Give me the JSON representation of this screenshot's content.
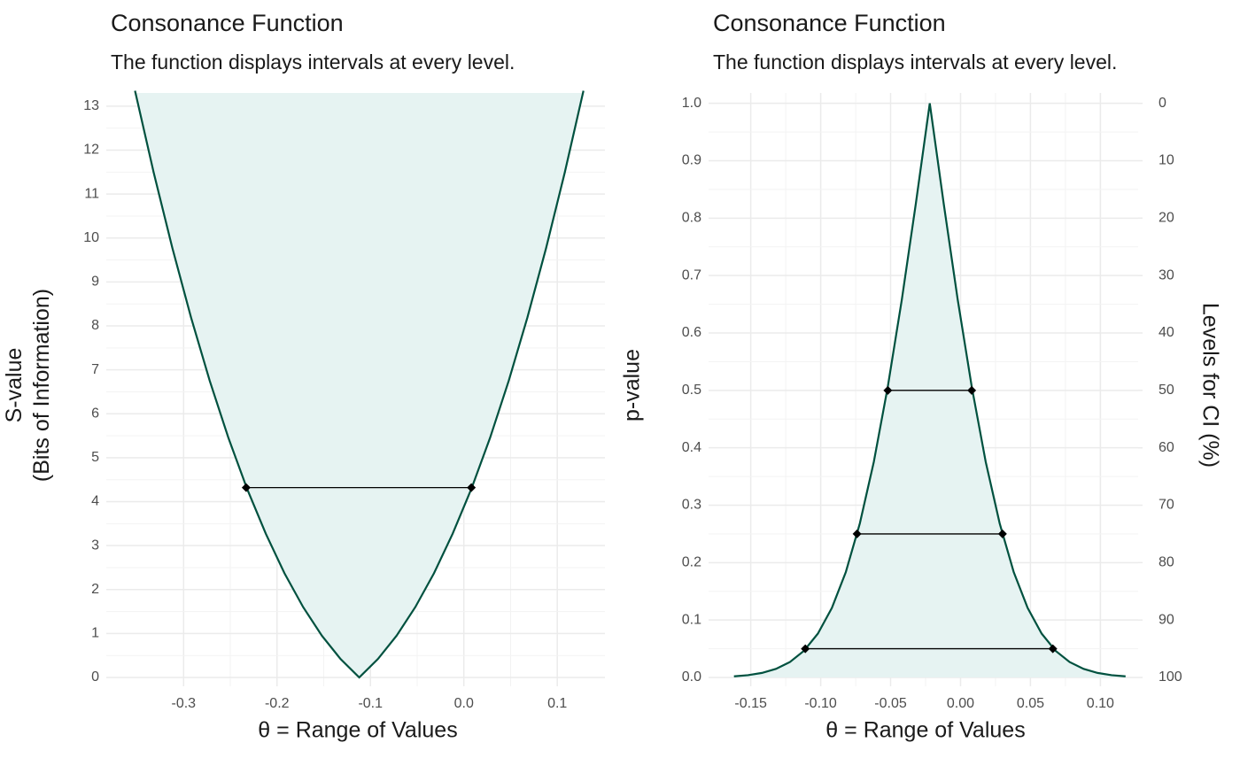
{
  "chart_data": [
    {
      "type": "line",
      "fill": "above",
      "color": "#00513f",
      "fill_color": "#e6f3f2",
      "title": "Consonance Function",
      "subtitle": "The function displays intervals at every level.",
      "x_label": "θ =  Range of Values",
      "y_label": [
        "S-value",
        "(Bits of Information)"
      ],
      "x": [
        -0.352,
        -0.332,
        -0.312,
        -0.292,
        -0.272,
        -0.252,
        -0.232,
        -0.212,
        -0.192,
        -0.172,
        -0.152,
        -0.132,
        -0.112,
        -0.092,
        -0.072,
        -0.052,
        -0.032,
        -0.012,
        0.008,
        0.028,
        0.048,
        0.068,
        0.088,
        0.108,
        0.128
      ],
      "values": [
        13.35,
        11.49,
        9.77,
        8.19,
        6.75,
        5.45,
        4.29,
        3.27,
        2.37,
        1.6,
        0.95,
        0.42,
        0,
        0.42,
        0.95,
        1.6,
        2.37,
        3.27,
        4.29,
        5.45,
        6.75,
        8.19,
        9.77,
        11.49,
        13.35
      ],
      "intervals": [
        {
          "lower": -0.233,
          "upper": 0.008,
          "level": 4.32
        }
      ],
      "xlim": [
        -0.378,
        0.151
      ],
      "ylim": [
        0,
        13.3
      ],
      "xticks": [
        -0.3,
        -0.2,
        -0.1,
        {
          "value": 0,
          "label": "0.0"
        },
        0.1
      ],
      "yticks": [
        0,
        1,
        2,
        3,
        4,
        5,
        6,
        7,
        8,
        9,
        10,
        11,
        12,
        13
      ],
      "grid": true
    },
    {
      "type": "line",
      "fill": "below",
      "color": "#00513f",
      "fill_color": "#e6f3f2",
      "title": "Consonance Function",
      "subtitle": "The function displays intervals at every level.",
      "x_label": "θ =  Range of Values",
      "y_label": [
        "p-value"
      ],
      "y2_label": "Levels for CI (%)",
      "x": [
        -0.162,
        -0.152,
        -0.142,
        -0.132,
        -0.122,
        -0.112,
        -0.102,
        -0.092,
        -0.082,
        -0.072,
        -0.062,
        -0.052,
        -0.042,
        -0.032,
        -0.022,
        -0.012,
        -0.002,
        0.008,
        0.018,
        0.028,
        0.038,
        0.048,
        0.058,
        0.068,
        0.078,
        0.088,
        0.098,
        0.108,
        0.118
      ],
      "values": [
        0.0019,
        0.004,
        0.0079,
        0.0149,
        0.0268,
        0.0463,
        0.0764,
        0.1211,
        0.1838,
        0.2683,
        0.3756,
        0.5066,
        0.6578,
        0.8247,
        1,
        0.8247,
        0.6578,
        0.5066,
        0.3756,
        0.2683,
        0.1838,
        0.1211,
        0.0764,
        0.0463,
        0.0268,
        0.0149,
        0.0079,
        0.004,
        0.0019
      ],
      "intervals": [
        {
          "lower": -0.052,
          "upper": 0.008,
          "level": 0.5
        },
        {
          "lower": -0.074,
          "upper": 0.03,
          "level": 0.25
        },
        {
          "lower": -0.111,
          "upper": 0.066,
          "level": 0.05
        }
      ],
      "xlim": [
        -0.177,
        0.127
      ],
      "ylim": [
        0,
        1.018
      ],
      "y2lim": [
        100,
        -1.8
      ],
      "xticks": [
        -0.15,
        {
          "value": -0.1,
          "label": "-0.10"
        },
        -0.05,
        {
          "value": 0,
          "label": "0.00"
        },
        0.05,
        {
          "value": 0.1,
          "label": "0.10"
        }
      ],
      "yticks": [
        {
          "value": 0,
          "label": "0.0"
        },
        0.1,
        0.2,
        0.3,
        0.4,
        0.5,
        0.6,
        0.7,
        0.8,
        0.9,
        {
          "value": 1,
          "label": "1.0"
        }
      ],
      "y2ticks": [
        0,
        10,
        20,
        30,
        40,
        50,
        60,
        70,
        80,
        90,
        100
      ],
      "grid": true
    }
  ]
}
